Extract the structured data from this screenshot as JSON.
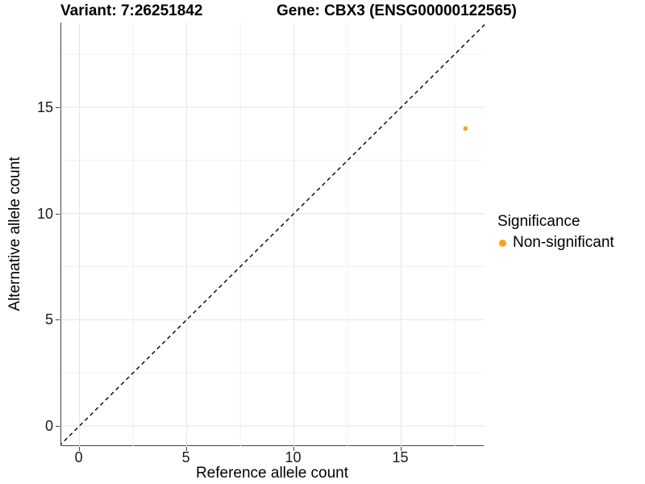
{
  "chart_data": {
    "type": "scatter",
    "title_left": "Variant: 7:26251842",
    "title_right": "Gene: CBX3 (ENSG00000122565)",
    "xlabel": "Reference allele count",
    "ylabel": "Alternative allele count",
    "xlim": [
      -0.85,
      18.89
    ],
    "ylim": [
      -0.95,
      18.99
    ],
    "x_major_ticks": [
      0,
      5,
      10,
      15
    ],
    "y_major_ticks": [
      0,
      5,
      10,
      15
    ],
    "x_minor_ticks": [
      2.5,
      7.5,
      12.5,
      17.5
    ],
    "y_minor_ticks": [
      2.5,
      7.5,
      12.5,
      17.5
    ],
    "grid": {
      "major": true,
      "minor": true
    },
    "identity_line": {
      "slope": 1,
      "intercept": 0,
      "style": "dashed",
      "color": "#000000"
    },
    "series": [
      {
        "name": "Non-significant",
        "color": "#FFA216",
        "points": [
          {
            "x": 18,
            "y": 14
          }
        ]
      }
    ],
    "legend": {
      "title": "Significance",
      "position": "right",
      "entries": [
        {
          "label": "Non-significant",
          "color": "#FFA216"
        }
      ]
    }
  },
  "colors": {
    "background": "#ffffff",
    "axis_line": "#404040",
    "major_grid": "#e4e4e4",
    "minor_grid": "#f0f0f0",
    "tick_label": "#1a1a1a",
    "point_orange": "#FFA216"
  }
}
